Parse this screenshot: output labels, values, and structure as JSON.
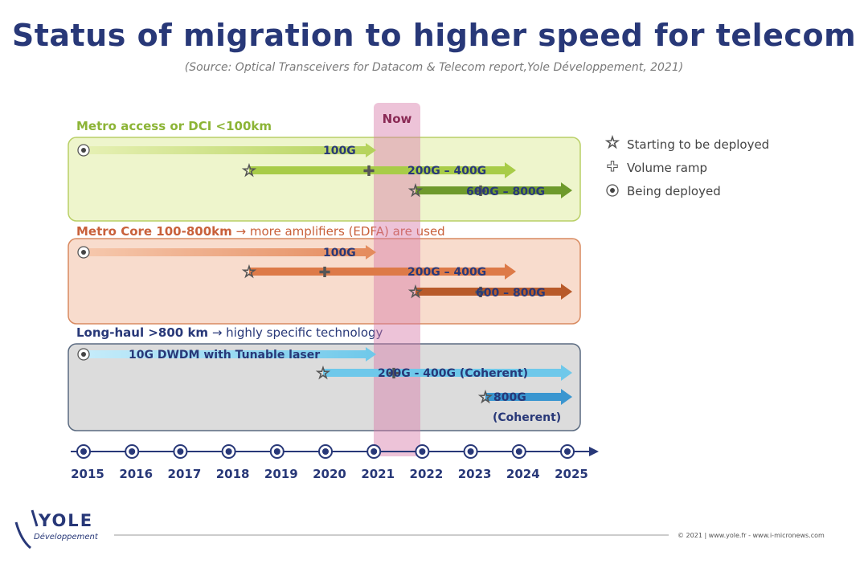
{
  "header": {
    "title": "Status of migration to higher speed for telecom",
    "source": "(Source: Optical Transceivers for Datacom & Telecom report,Yole Développement, 2021)"
  },
  "now_label": "Now",
  "legend": {
    "starting": "Starting to be deployed",
    "volume": "Volume ramp",
    "being": "Being deployed"
  },
  "sections": {
    "metro_access": {
      "title": "Metro access or DCI <100km",
      "color": "#c6dc6c",
      "rows": [
        {
          "label": "100G",
          "start": 2015,
          "end": 2021
        },
        {
          "label": "200G – 400G",
          "star": 2018,
          "volume": 2020.9,
          "end": 2023.7
        },
        {
          "label": "600G – 800G",
          "star": 2021.9,
          "volume": 2023.1,
          "end": 2025
        }
      ]
    },
    "metro_core": {
      "title": "Metro Core 100-800km",
      "note": " → more amplifiers (EDFA) are used",
      "color": "#e48a5c",
      "rows": [
        {
          "label": "100G",
          "start": 2015,
          "end": 2021
        },
        {
          "label": "200G – 400G",
          "star": 2018,
          "volume": 2020,
          "end": 2023.7
        },
        {
          "label": "600 – 800G",
          "star": 2021.9,
          "volume": 2023.1,
          "end": 2025
        }
      ]
    },
    "long_haul": {
      "title": "Long-haul >800 km",
      "note": " → highly specific technology",
      "color": "#6ec8ea",
      "rows": [
        {
          "label": "10G DWDM with Tunable laser",
          "start": 2015,
          "end": 2021
        },
        {
          "label": "200G - 400G (Coherent)",
          "star": 2020,
          "volume": 2021.6,
          "end": 2025
        },
        {
          "label": "800G",
          "label2": "(Coherent)",
          "star": 2023.2,
          "end": 2025
        }
      ]
    }
  },
  "timeline": {
    "years": [
      "2015",
      "2016",
      "2017",
      "2018",
      "2019",
      "2020",
      "2021",
      "2022",
      "2023",
      "2024",
      "2025"
    ]
  },
  "footer": {
    "logo_text": "YOLE",
    "logo_sub": "Développement",
    "copyright": "© 2021 | www.yole.fr - www.i-micronews.com"
  }
}
